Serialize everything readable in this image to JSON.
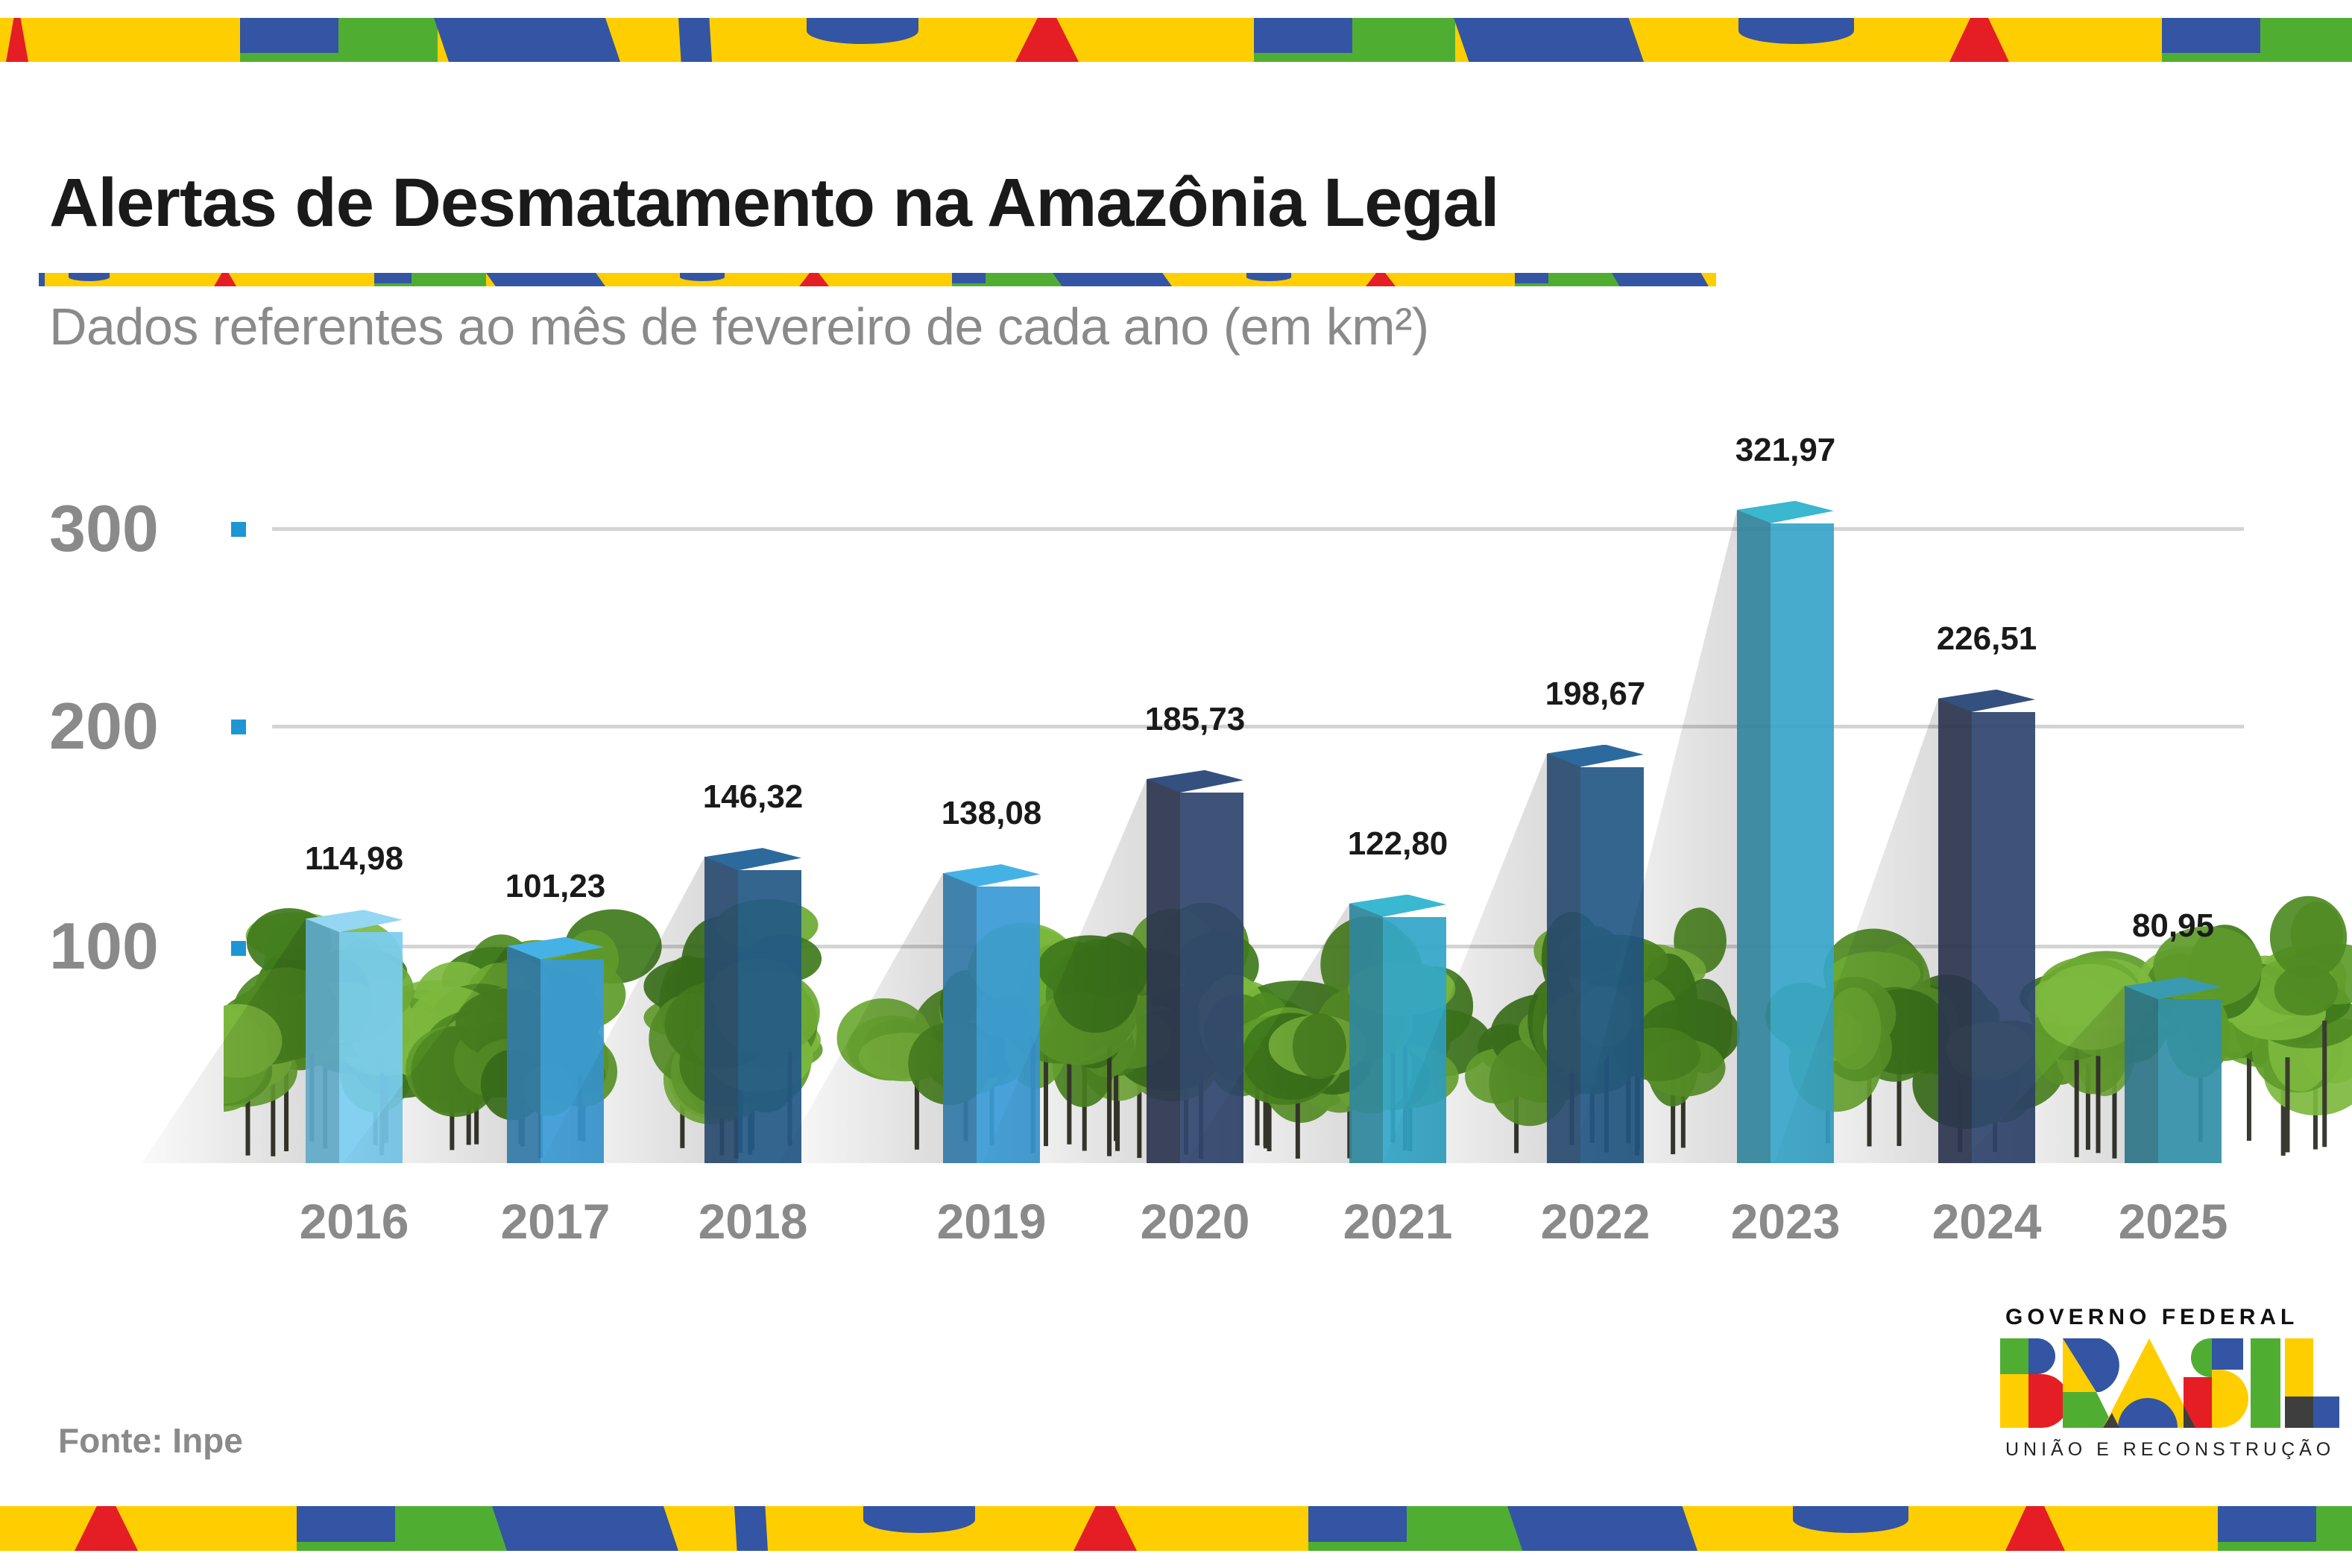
{
  "header": {
    "title": "Alertas de Desmatamento na Amazônia Legal",
    "subtitle": "Dados referentes ao mês de fevereiro de cada ano (em km²)"
  },
  "colors": {
    "yellow": "#FFCE00",
    "blue": "#3355A3",
    "green": "#4FAE32",
    "red": "#E51E25",
    "dark": "#3E3E3E",
    "axis_text": "#8A8A8A",
    "tick_marker": "#1E96D4",
    "gridline": "#D4D4D4"
  },
  "yaxis": {
    "ticks": [
      "300",
      "200",
      "100"
    ]
  },
  "chart_data": {
    "type": "bar",
    "title": "Alertas de Desmatamento na Amazônia Legal",
    "subtitle": "Dados referentes ao mês de fevereiro de cada ano (em km²)",
    "xlabel": "",
    "ylabel": "km²",
    "categories": [
      "2016",
      "2017",
      "2018",
      "2019",
      "2020",
      "2021",
      "2022",
      "2023",
      "2024",
      "2025"
    ],
    "values": [
      114.98,
      101.23,
      146.32,
      138.08,
      185.73,
      122.8,
      198.67,
      321.97,
      226.51,
      80.95
    ],
    "value_labels": [
      "114,98",
      "101,23",
      "146,32",
      "138,08",
      "185,73",
      "122,80",
      "198,67",
      "321,97",
      "226,51",
      "80,95"
    ],
    "yticks": [
      100,
      200,
      300
    ],
    "ylim": [
      0,
      330
    ],
    "grid": true,
    "legend": "none",
    "style": "3D columns over tree background"
  },
  "bars": [
    {
      "year": "2016",
      "label": "114,98",
      "front": "#7ACCF0",
      "side": "#5FA8C6",
      "top": "#95D6F2"
    },
    {
      "year": "2017",
      "label": "101,23",
      "front": "#3A9BD6",
      "side": "#3279A6",
      "top": "#45B2E6"
    },
    {
      "year": "2018",
      "label": "146,32",
      "front": "#245987",
      "side": "#294A6E",
      "top": "#2C6A9E"
    },
    {
      "year": "2019",
      "label": "138,08",
      "front": "#3A9BD6",
      "side": "#3279A6",
      "top": "#45B2E6"
    },
    {
      "year": "2020",
      "label": "185,73",
      "front": "#30466E",
      "side": "#2C354F",
      "top": "#33507F"
    },
    {
      "year": "2021",
      "label": "122,80",
      "front": "#33A6C7",
      "side": "#2F859C",
      "top": "#3AB8D1"
    },
    {
      "year": "2022",
      "label": "198,67",
      "front": "#245987",
      "side": "#294A6E",
      "top": "#2C6A9E"
    },
    {
      "year": "2023",
      "label": "321,97",
      "front": "#38A5C9",
      "side": "#31839B",
      "top": "#3BB7D0"
    },
    {
      "year": "2024",
      "label": "226,51",
      "front": "#30466E",
      "side": "#2C354F",
      "top": "#33507F"
    },
    {
      "year": "2025",
      "label": "80,95",
      "front": "#3390A8",
      "side": "#2D7385",
      "top": "#3A9AB0"
    }
  ],
  "footer": {
    "source": "Fonte: Inpe"
  },
  "logo": {
    "top_text": "GOVERNO FEDERAL",
    "wordmark": "BRASIL",
    "bottom_text": "UNIÃO E RECONSTRUÇÃO"
  }
}
